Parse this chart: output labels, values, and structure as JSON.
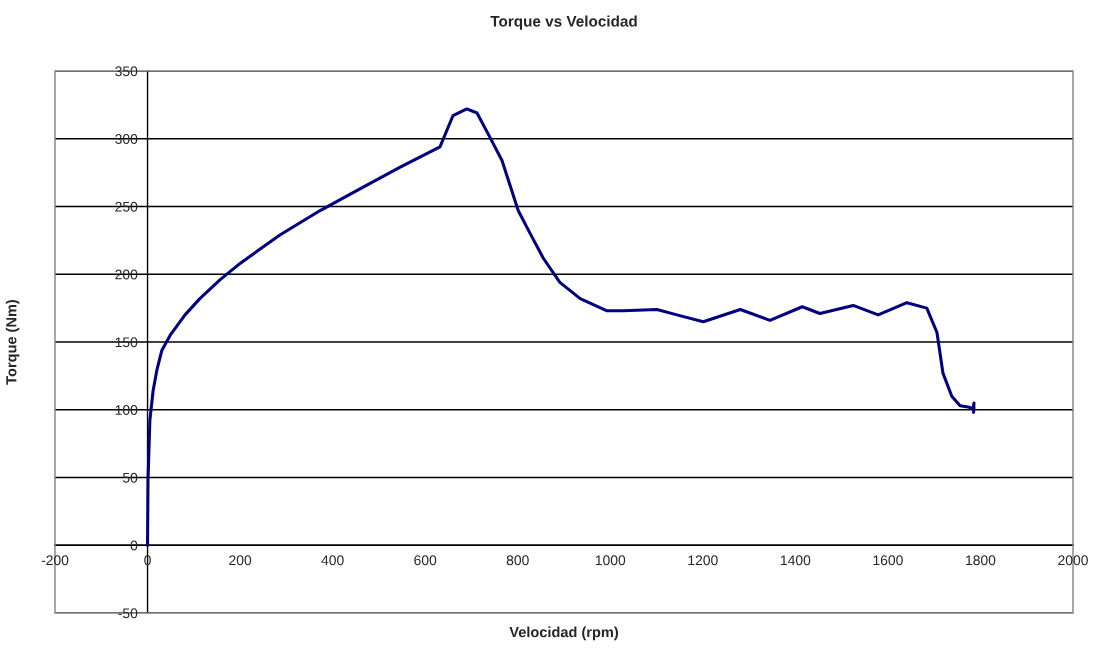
{
  "chart_data": {
    "type": "line",
    "title": "Torque vs Velocidad",
    "xlabel": "Velocidad (rpm)",
    "ylabel": "Torque (Nm)",
    "xlim": [
      -200,
      2000
    ],
    "xticks": [
      -200,
      0,
      200,
      400,
      600,
      800,
      1000,
      1200,
      1400,
      1600,
      1800,
      2000
    ],
    "ylim": [
      -50,
      350
    ],
    "yticks": [
      -50,
      0,
      50,
      100,
      150,
      200,
      250,
      300,
      350
    ],
    "grid": "y",
    "legend": false,
    "marker": "none",
    "line_style": "solid",
    "series": [
      {
        "color": "#000080",
        "x": [
          0,
          1,
          5,
          12,
          20,
          31,
          49,
          81,
          113,
          157,
          200,
          286,
          373,
          459,
          546,
          632,
          660,
          690,
          712,
          740,
          766,
          801,
          827,
          855,
          891,
          935,
          993,
          1028,
          1101,
          1144,
          1201,
          1281,
          1345,
          1415,
          1453,
          1525,
          1579,
          1641,
          1684,
          1706,
          1719,
          1738,
          1756,
          1773,
          1784,
          1786,
          1785,
          1786
        ],
        "values": [
          0,
          48,
          92,
          114,
          129,
          144,
          155,
          170,
          182,
          196,
          208,
          229,
          247,
          263,
          279,
          294,
          317,
          322,
          319,
          301,
          284,
          247,
          230,
          212,
          194,
          182,
          173,
          173,
          174,
          170,
          165,
          174,
          166,
          176,
          171,
          177,
          170,
          179,
          175,
          157,
          127,
          110,
          103,
          102,
          101,
          105,
          98,
          102
        ]
      }
    ]
  }
}
